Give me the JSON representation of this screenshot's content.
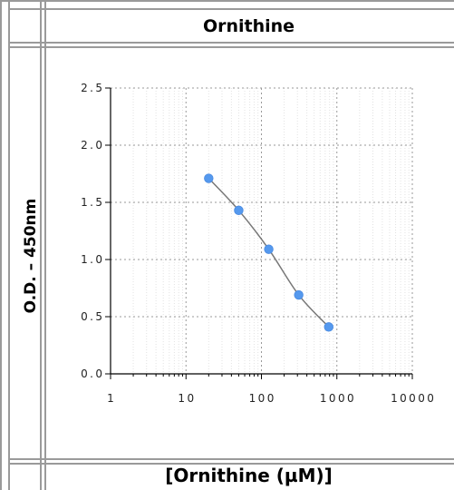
{
  "title": "Ornithine",
  "chart_data": {
    "type": "scatter",
    "title": "Ornithine",
    "xlabel": "[Ornithine (µM)]",
    "ylabel": "O.D. – 450nm",
    "xscale": "log",
    "xlim": [
      1,
      10000
    ],
    "ylim": [
      0.0,
      2.5
    ],
    "xticks": [
      "1",
      "10",
      "100",
      "1000",
      "10000"
    ],
    "yticks": [
      "0.0",
      "0.5",
      "1.0",
      "1.5",
      "2.0",
      "2.5"
    ],
    "grid": true,
    "legend": "none",
    "series": [
      {
        "x": [
          20,
          50,
          125,
          312,
          780
        ],
        "y": [
          1.71,
          1.43,
          1.09,
          0.69,
          0.41
        ],
        "fit_line": true
      }
    ],
    "colors": {
      "points": "#5599ee",
      "line": "#777777",
      "grid": "#999999"
    }
  }
}
